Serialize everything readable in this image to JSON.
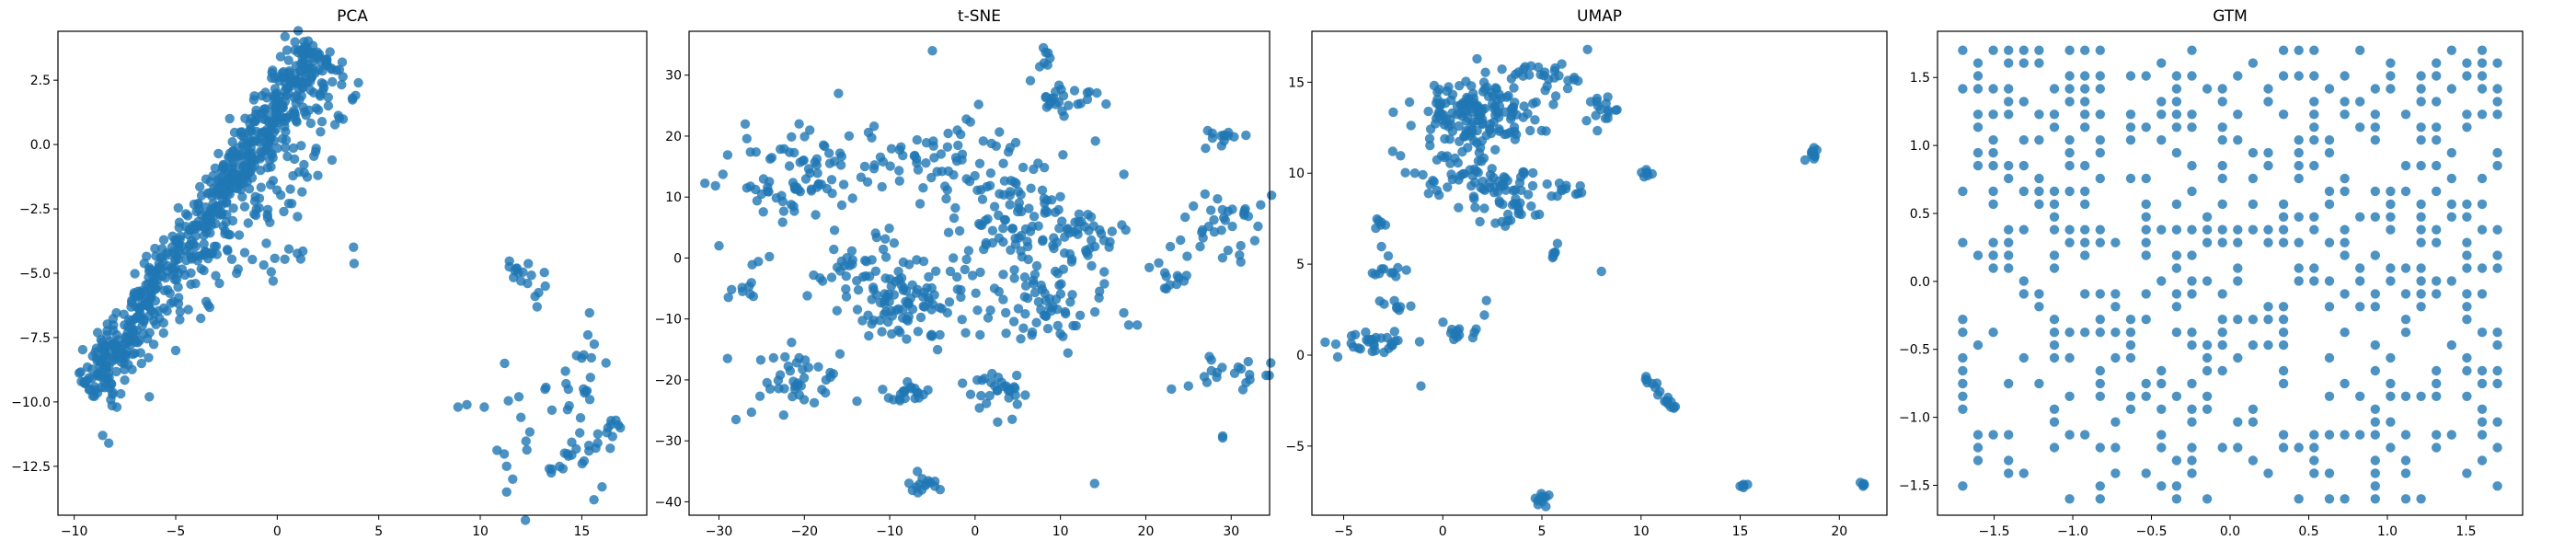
{
  "figure": {
    "background": "#ffffff",
    "marker_color": "#1f77b4",
    "marker_alpha": 0.8
  },
  "chart_data": [
    {
      "type": "scatter",
      "title": "PCA",
      "xlabel": "",
      "ylabel": "",
      "xlim": [
        -10.8,
        18.2
      ],
      "ylim": [
        -14.4,
        4.4
      ],
      "xticks": [
        -10,
        -5,
        0,
        5,
        10,
        15
      ],
      "xtick_labels": [
        "−10",
        "−5",
        "0",
        "5",
        "10",
        "15"
      ],
      "yticks": [
        -12.5,
        -10.0,
        -7.5,
        -5.0,
        -2.5,
        0.0,
        2.5
      ],
      "ytick_labels": [
        "−12.5",
        "−10.0",
        "−7.5",
        "−5.0",
        "−2.5",
        "0.0",
        "2.5"
      ],
      "grid": false,
      "clusters": [
        {
          "kind": "band",
          "from": [
            -9.3,
            -9.6
          ],
          "to": [
            2.0,
            3.7
          ],
          "width": 1.6,
          "n": 650
        },
        {
          "kind": "band",
          "from": [
            -5.0,
            -6.5
          ],
          "to": [
            3.5,
            2.5
          ],
          "width": 2.2,
          "n": 90
        },
        {
          "kind": "blob",
          "center": [
            -0.5,
            -3.5
          ],
          "sd": [
            2.0,
            1.2
          ],
          "n": 25
        },
        {
          "kind": "blob",
          "center": [
            12.2,
            -5.2
          ],
          "sd": [
            0.7,
            0.5
          ],
          "n": 12
        },
        {
          "kind": "blob",
          "center": [
            15.0,
            -8.8
          ],
          "sd": [
            0.7,
            1.2
          ],
          "n": 18
        },
        {
          "kind": "band",
          "from": [
            13.2,
            -12.8
          ],
          "to": [
            16.9,
            -10.8
          ],
          "width": 0.8,
          "n": 22
        },
        {
          "kind": "blob",
          "center": [
            11.8,
            -11.5
          ],
          "sd": [
            1.2,
            1.2
          ],
          "n": 10
        }
      ],
      "points": [
        [
          -8.3,
          -11.6
        ],
        [
          -8.6,
          -11.3
        ],
        [
          -7.9,
          -10.2
        ],
        [
          -6.3,
          -9.8
        ],
        [
          -5.0,
          -8.0
        ],
        [
          -4.8,
          -6.8
        ],
        [
          -3.5,
          -6.1
        ],
        [
          -2.0,
          -5.0
        ],
        [
          -0.2,
          -5.3
        ],
        [
          2.7,
          -0.6
        ],
        [
          3.7,
          1.8
        ],
        [
          4.0,
          2.4
        ],
        [
          2.0,
          -1.2
        ],
        [
          1.0,
          -2.8
        ],
        [
          -1.6,
          -4.2
        ],
        [
          3.2,
          3.2
        ],
        [
          2.6,
          3.6
        ],
        [
          8.9,
          -10.2
        ],
        [
          10.2,
          -10.2
        ],
        [
          11.2,
          -8.5
        ],
        [
          11.3,
          -12.5
        ],
        [
          11.3,
          -13.5
        ],
        [
          11.6,
          -13.0
        ],
        [
          11.7,
          -4.9
        ],
        [
          12.0,
          -5.3
        ],
        [
          12.7,
          -5.9
        ],
        [
          13.2,
          -5.5
        ],
        [
          12.8,
          -6.3
        ],
        [
          14.3,
          -10.3
        ],
        [
          14.9,
          -11.2
        ],
        [
          15.2,
          -9.6
        ],
        [
          15.6,
          -13.8
        ],
        [
          16.0,
          -13.3
        ],
        [
          16.4,
          -11.8
        ],
        [
          16.8,
          -10.9
        ],
        [
          16.9,
          -11.0
        ],
        [
          15.3,
          -7.4
        ],
        [
          15.0,
          -8.3
        ],
        [
          12.0,
          -10.6
        ],
        [
          11.9,
          -9.8
        ],
        [
          13.4,
          -12.6
        ]
      ]
    },
    {
      "type": "scatter",
      "title": "t-SNE",
      "xlabel": "",
      "ylabel": "",
      "xlim": [
        -33.5,
        34.5
      ],
      "ylim": [
        -42.2,
        37.2
      ],
      "xticks": [
        -30,
        -20,
        -10,
        0,
        10,
        20,
        30
      ],
      "xtick_labels": [
        "−30",
        "−20",
        "−10",
        "0",
        "10",
        "20",
        "30"
      ],
      "yticks": [
        -40,
        -30,
        -20,
        -10,
        0,
        10,
        20,
        30
      ],
      "ytick_labels": [
        "−40",
        "−30",
        "−20",
        "−10",
        "0",
        "10",
        "20",
        "30"
      ],
      "grid": false,
      "clusters": [
        {
          "kind": "blob",
          "center": [
            -20,
            14
          ],
          "sd": [
            4,
            3.5
          ],
          "n": 80
        },
        {
          "kind": "blob",
          "center": [
            -8,
            -7
          ],
          "sd": [
            3.5,
            3.5
          ],
          "n": 100
        },
        {
          "kind": "blob",
          "center": [
            5,
            7
          ],
          "sd": [
            4.5,
            5
          ],
          "n": 110
        },
        {
          "kind": "blob",
          "center": [
            -4,
            16
          ],
          "sd": [
            5,
            4
          ],
          "n": 60
        },
        {
          "kind": "blob",
          "center": [
            8,
            -8
          ],
          "sd": [
            3,
            3
          ],
          "n": 60
        },
        {
          "kind": "blob",
          "center": [
            -20,
            -20
          ],
          "sd": [
            3,
            2.5
          ],
          "n": 40
        },
        {
          "kind": "blob",
          "center": [
            -8,
            -22
          ],
          "sd": [
            1.5,
            1
          ],
          "n": 20
        },
        {
          "kind": "blob",
          "center": [
            3,
            -22
          ],
          "sd": [
            1.8,
            2.2
          ],
          "n": 30
        },
        {
          "kind": "blob",
          "center": [
            -6,
            -37
          ],
          "sd": [
            1.2,
            1.2
          ],
          "n": 15
        },
        {
          "kind": "blob",
          "center": [
            11,
            26
          ],
          "sd": [
            2.2,
            1.5
          ],
          "n": 25
        },
        {
          "kind": "blob",
          "center": [
            8,
            33
          ],
          "sd": [
            0.8,
            0.8
          ],
          "n": 6
        },
        {
          "kind": "blob",
          "center": [
            29,
            5
          ],
          "sd": [
            2.2,
            3
          ],
          "n": 35
        },
        {
          "kind": "blob",
          "center": [
            29,
            20
          ],
          "sd": [
            1,
            0.8
          ],
          "n": 12
        },
        {
          "kind": "blob",
          "center": [
            30,
            -20
          ],
          "sd": [
            2.5,
            2
          ],
          "n": 18
        },
        {
          "kind": "blob",
          "center": [
            23,
            -3
          ],
          "sd": [
            1.5,
            1.5
          ],
          "n": 12
        },
        {
          "kind": "blob",
          "center": [
            -27,
            -5
          ],
          "sd": [
            1.2,
            2
          ],
          "n": 10
        },
        {
          "kind": "blob",
          "center": [
            14,
            4
          ],
          "sd": [
            2,
            4
          ],
          "n": 25
        },
        {
          "kind": "blob",
          "center": [
            -14,
            0
          ],
          "sd": [
            3,
            3
          ],
          "n": 30
        }
      ],
      "points": [
        [
          -30,
          2.0
        ],
        [
          -29,
          -16.5
        ],
        [
          -28,
          -26.5
        ],
        [
          -25,
          10.5
        ],
        [
          -16,
          27.0
        ],
        [
          -5,
          34.0
        ],
        [
          -2,
          18.5
        ],
        [
          8,
          34.5
        ],
        [
          23,
          -21.5
        ],
        [
          25,
          -21.0
        ],
        [
          29,
          -29.5
        ],
        [
          29,
          -29.2
        ],
        [
          14,
          -37.0
        ],
        [
          18,
          -11.0
        ],
        [
          19,
          -11.0
        ],
        [
          27,
          18.0
        ],
        [
          32,
          -17.0
        ]
      ]
    },
    {
      "type": "scatter",
      "title": "UMAP",
      "xlabel": "",
      "ylabel": "",
      "xlim": [
        -6.6,
        22.4
      ],
      "ylim": [
        -8.8,
        17.8
      ],
      "xticks": [
        -5,
        0,
        5,
        10,
        15,
        20
      ],
      "xtick_labels": [
        "−5",
        "0",
        "5",
        "10",
        "15",
        "20"
      ],
      "yticks": [
        -5,
        0,
        5,
        10,
        15
      ],
      "ytick_labels": [
        "−5",
        "0",
        "5",
        "10",
        "15"
      ],
      "grid": false,
      "clusters": [
        {
          "kind": "blob",
          "center": [
            1.8,
            13.3
          ],
          "sd": [
            1.6,
            1.0
          ],
          "n": 160
        },
        {
          "kind": "blob",
          "center": [
            0.6,
            10.0
          ],
          "sd": [
            1.4,
            0.8
          ],
          "n": 50
        },
        {
          "kind": "blob",
          "center": [
            3.6,
            8.5
          ],
          "sd": [
            1.0,
            0.9
          ],
          "n": 45
        },
        {
          "kind": "blob",
          "center": [
            5.2,
            15.3
          ],
          "sd": [
            0.8,
            0.5
          ],
          "n": 25
        },
        {
          "kind": "blob",
          "center": [
            8.4,
            13.5
          ],
          "sd": [
            0.6,
            0.4
          ],
          "n": 15
        },
        {
          "kind": "blob",
          "center": [
            6.2,
            9.0
          ],
          "sd": [
            0.6,
            0.3
          ],
          "n": 12
        },
        {
          "kind": "blob",
          "center": [
            10.2,
            10.0
          ],
          "sd": [
            0.2,
            0.2
          ],
          "n": 6
        },
        {
          "kind": "blob",
          "center": [
            -3.3,
            0.6
          ],
          "sd": [
            1.0,
            0.4
          ],
          "n": 30
        },
        {
          "kind": "blob",
          "center": [
            -3.0,
            4.7
          ],
          "sd": [
            0.6,
            0.4
          ],
          "n": 12
        },
        {
          "kind": "blob",
          "center": [
            -3.2,
            7.2
          ],
          "sd": [
            0.2,
            0.2
          ],
          "n": 5
        },
        {
          "kind": "blob",
          "center": [
            1.0,
            1.0
          ],
          "sd": [
            0.5,
            0.3
          ],
          "n": 12
        },
        {
          "kind": "blob",
          "center": [
            -2.5,
            2.7
          ],
          "sd": [
            0.5,
            0.2
          ],
          "n": 8
        },
        {
          "kind": "band",
          "from": [
            10.0,
            -1.0
          ],
          "to": [
            11.8,
            -3.0
          ],
          "width": 0.3,
          "n": 20
        },
        {
          "kind": "blob",
          "center": [
            18.6,
            11.0
          ],
          "sd": [
            0.2,
            0.15
          ],
          "n": 10
        },
        {
          "kind": "blob",
          "center": [
            5.0,
            -7.8
          ],
          "sd": [
            0.25,
            0.3
          ],
          "n": 10
        },
        {
          "kind": "blob",
          "center": [
            15.2,
            -7.2
          ],
          "sd": [
            0.1,
            0.1
          ],
          "n": 4
        },
        {
          "kind": "blob",
          "center": [
            21.2,
            -7.2
          ],
          "sd": [
            0.1,
            0.1
          ],
          "n": 4
        },
        {
          "kind": "blob",
          "center": [
            5.5,
            5.5
          ],
          "sd": [
            0.2,
            0.4
          ],
          "n": 6
        }
      ],
      "points": [
        [
          -5.3,
          -0.1
        ],
        [
          -1.1,
          -1.7
        ],
        [
          2.1,
          2.2
        ],
        [
          2.2,
          3.0
        ],
        [
          8.0,
          4.6
        ],
        [
          6.0,
          16.0
        ],
        [
          7.3,
          16.8
        ],
        [
          10.3,
          10.0
        ],
        [
          15.0,
          -7.2
        ],
        [
          21.2,
          -7.2
        ],
        [
          4.8,
          -8.0
        ],
        [
          -3.1,
          7.3
        ]
      ]
    },
    {
      "type": "scatter",
      "title": "GTM",
      "xlabel": "",
      "ylabel": "",
      "xlim": [
        -1.86,
        1.86
      ],
      "ylim": [
        -1.72,
        1.84
      ],
      "xticks": [
        -1.5,
        -1.0,
        -0.5,
        0.0,
        0.5,
        1.0,
        1.5
      ],
      "xtick_labels": [
        "−1.5",
        "−1.0",
        "−0.5",
        "0.0",
        "0.5",
        "1.0",
        "1.5"
      ],
      "yticks": [
        -1.5,
        -1.0,
        -0.5,
        0.0,
        0.5,
        1.0,
        1.5
      ],
      "ytick_labels": [
        "−1.5",
        "−1.0",
        "−0.5",
        "0.0",
        "0.5",
        "1.0",
        "1.5"
      ],
      "grid": false,
      "lattice": {
        "x_range": [
          -1.7,
          1.7
        ],
        "y_range": [
          -1.6,
          1.7
        ],
        "n_x": 36,
        "n_y": 36,
        "fill_fraction": 0.38
      },
      "clusters": [],
      "points": []
    }
  ]
}
